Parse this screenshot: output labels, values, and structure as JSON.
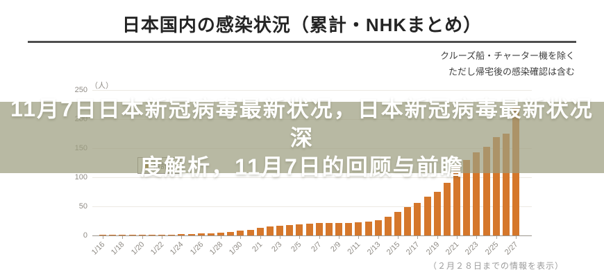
{
  "header": {
    "title": "日本国内の感染状況（累計・NHKまとめ）",
    "note_line1": "クルーズ船・チャーター機を除く",
    "note_line2": "ただし帰宅後の感染確認は含む"
  },
  "overlay": {
    "line1": "11月7日日本新冠病毒最新状况，日本新冠病毒最新状况深",
    "line2": "度解析，11月7日的回顾与前瞻",
    "background_color": "#9c9e7f",
    "text_color": "#ffffff"
  },
  "chart_data": {
    "type": "bar",
    "title": "日本国内の感染状況（累計・NHKまとめ）",
    "unit_label": "（人）",
    "legend": [
      {
        "label": "累計数",
        "color": "#c7922c"
      }
    ],
    "bar_color": "#d5772b",
    "grid": true,
    "ylim": [
      0,
      250
    ],
    "yticks": [
      0,
      50,
      100,
      150,
      200,
      250
    ],
    "x": [
      "1/16",
      "1/17",
      "1/18",
      "1/19",
      "1/20",
      "1/21",
      "1/22",
      "1/23",
      "1/24",
      "1/25",
      "1/26",
      "1/27",
      "1/28",
      "1/29",
      "1/30",
      "1/31",
      "2/1",
      "2/2",
      "2/3",
      "2/4",
      "2/5",
      "2/6",
      "2/7",
      "2/8",
      "2/9",
      "2/10",
      "2/11",
      "2/12",
      "2/13",
      "2/14",
      "2/15",
      "2/16",
      "2/17",
      "2/18",
      "2/19",
      "2/20",
      "2/21",
      "2/22",
      "2/23",
      "2/24",
      "2/25",
      "2/26",
      "2/27"
    ],
    "values": [
      1,
      1,
      1,
      1,
      1,
      1,
      1,
      1,
      2,
      2,
      3,
      4,
      5,
      6,
      8,
      10,
      13,
      15,
      17,
      18,
      19,
      20,
      21,
      21,
      22,
      22,
      23,
      24,
      26,
      32,
      40,
      49,
      56,
      67,
      75,
      90,
      119,
      130,
      143,
      152,
      169,
      175,
      219
    ],
    "x_labels_every": 2,
    "footnote": "（２月２８日までの情報を表示）"
  }
}
